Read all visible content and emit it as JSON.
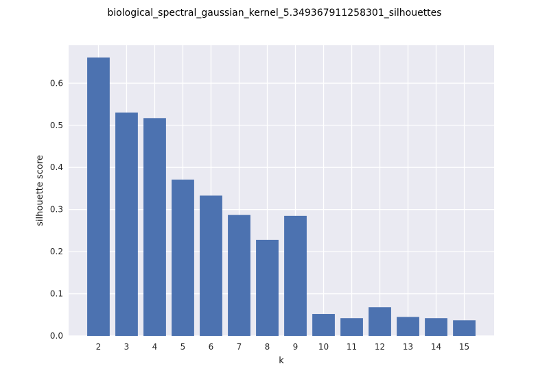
{
  "chart_data": {
    "type": "bar",
    "title": "biological_spectral_gaussian_kernel_5.349367911258301_silhouettes",
    "xlabel": "k",
    "ylabel": "silhouette score",
    "categories": [
      "2",
      "3",
      "4",
      "5",
      "6",
      "7",
      "8",
      "9",
      "10",
      "11",
      "12",
      "13",
      "14",
      "15"
    ],
    "values": [
      0.661,
      0.53,
      0.517,
      0.371,
      0.333,
      0.287,
      0.228,
      0.285,
      0.052,
      0.042,
      0.068,
      0.045,
      0.042,
      0.037
    ],
    "ylim": [
      0,
      0.69
    ],
    "yticks": [
      0.0,
      0.1,
      0.2,
      0.3,
      0.4,
      0.5,
      0.6
    ],
    "ytick_labels": [
      "0.0",
      "0.1",
      "0.2",
      "0.3",
      "0.4",
      "0.5",
      "0.6"
    ],
    "grid": true,
    "colors": {
      "bar": "#4c72b0",
      "plot_background": "#eaeaf2",
      "grid": "#ffffff"
    }
  }
}
